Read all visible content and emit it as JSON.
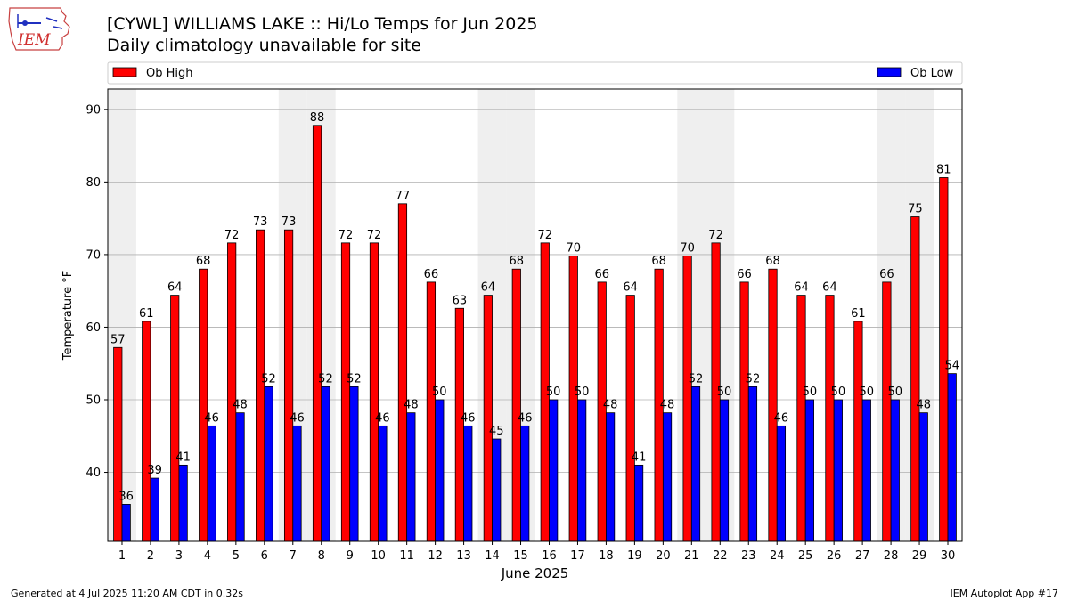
{
  "logo_text": "IEM",
  "header": {
    "title": "[CYWL] WILLIAMS LAKE :: Hi/Lo Temps for Jun 2025",
    "subtitle": "Daily climatology unavailable for site"
  },
  "footer": {
    "generated": "Generated at 4 Jul 2025 11:20 AM CDT in 0.32s",
    "app": "IEM Autoplot App #17"
  },
  "colors": {
    "high": "#ff0000",
    "low": "#0000ff",
    "weekend_shade": "#efefef",
    "grid": "#b0b0b0"
  },
  "chart_data": {
    "type": "bar",
    "xlabel": "June 2025",
    "ylabel": "Temperature °F",
    "ylim": [
      30.5,
      92.8
    ],
    "yticks": [
      40,
      50,
      60,
      70,
      80,
      90
    ],
    "grid": "horizontal",
    "legend_placement": "top",
    "categories": [
      "1",
      "2",
      "3",
      "4",
      "5",
      "6",
      "7",
      "8",
      "9",
      "10",
      "11",
      "12",
      "13",
      "14",
      "15",
      "16",
      "17",
      "18",
      "19",
      "20",
      "21",
      "22",
      "23",
      "24",
      "25",
      "26",
      "27",
      "28",
      "29",
      "30"
    ],
    "shaded_days": [
      1,
      7,
      8,
      14,
      15,
      21,
      22,
      28,
      29
    ],
    "series": [
      {
        "name": "Ob High",
        "values": [
          57.2,
          60.8,
          64.4,
          68.0,
          71.6,
          73.4,
          73.4,
          87.8,
          71.6,
          71.6,
          77.0,
          66.2,
          62.6,
          64.4,
          68.0,
          71.6,
          69.8,
          66.2,
          64.4,
          68.0,
          69.8,
          71.6,
          66.2,
          68.0,
          64.4,
          64.4,
          60.8,
          66.2,
          75.2,
          80.6
        ],
        "labels": [
          "57",
          "61",
          "64",
          "68",
          "72",
          "73",
          "73",
          "88",
          "72",
          "72",
          "77",
          "66",
          "63",
          "64",
          "68",
          "72",
          "70",
          "66",
          "64",
          "68",
          "70",
          "72",
          "66",
          "68",
          "64",
          "64",
          "61",
          "66",
          "75",
          "81"
        ]
      },
      {
        "name": "Ob Low",
        "values": [
          35.6,
          39.2,
          41.0,
          46.4,
          48.2,
          51.8,
          46.4,
          51.8,
          51.8,
          46.4,
          48.2,
          50.0,
          46.4,
          44.6,
          46.4,
          50.0,
          50.0,
          48.2,
          41.0,
          48.2,
          51.8,
          50.0,
          51.8,
          46.4,
          50.0,
          50.0,
          50.0,
          50.0,
          48.2,
          53.6
        ],
        "labels": [
          "36",
          "39",
          "41",
          "46",
          "48",
          "52",
          "46",
          "52",
          "52",
          "46",
          "48",
          "50",
          "46",
          "45",
          "46",
          "50",
          "50",
          "48",
          "41",
          "48",
          "52",
          "50",
          "52",
          "46",
          "50",
          "50",
          "50",
          "50",
          "48",
          "54"
        ]
      }
    ]
  }
}
